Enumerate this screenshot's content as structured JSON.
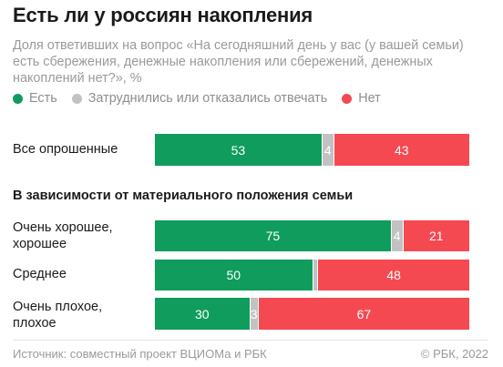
{
  "title": "Есть ли у россиян накопления",
  "subtitle": "Доля ответивших на вопрос «На сегодняшний день у вас (у вашей семьи) есть сбережения, денежные накопления или сбережений, денежных накоплений нет?», %",
  "section_title": "В зависимости от материального положения семьи",
  "source": "Источник: совместный проект ВЦИОМа и РБК",
  "copyright": "© РБК, 2022",
  "colors": {
    "yes": "#0f9c5c",
    "unsure": "#c2c2c2",
    "no": "#f54952"
  },
  "chart_data": {
    "type": "bar",
    "stacked": true,
    "orientation": "horizontal",
    "unit": "%",
    "categories": [
      "Все опрошенные",
      "Очень хорошее, хорошее",
      "Среднее",
      "Очень плохое, плохое"
    ],
    "series": [
      {
        "name": "Есть",
        "color": "#0f9c5c",
        "values": [
          53,
          75,
          50,
          30
        ]
      },
      {
        "name": "Затруднились или отказались отвечать",
        "color": "#c2c2c2",
        "values": [
          4,
          4,
          2,
          3
        ]
      },
      {
        "name": "Нет",
        "color": "#f54952",
        "values": [
          43,
          21,
          48,
          67
        ]
      }
    ],
    "segment_labels": [
      [
        "53",
        "4",
        "43"
      ],
      [
        "75",
        "4",
        "21"
      ],
      [
        "50",
        "",
        "48"
      ],
      [
        "30",
        "3",
        "67"
      ]
    ],
    "legend_position": "top",
    "grid": false
  },
  "rows": [
    {
      "label_lines": [
        "Все опрошенные"
      ]
    },
    {
      "label_lines": [
        "Очень хорошее,",
        "хорошее"
      ]
    },
    {
      "label_lines": [
        "Среднее"
      ]
    },
    {
      "label_lines": [
        "Очень плохое,",
        "плохое"
      ]
    }
  ]
}
